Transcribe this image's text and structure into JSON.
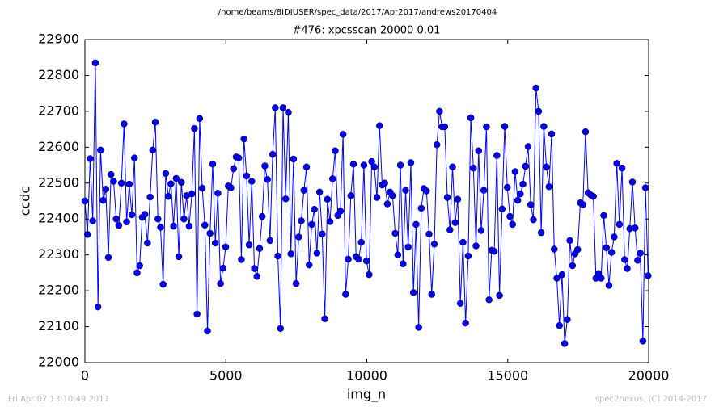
{
  "chart_data": {
    "type": "line",
    "suptitle": "/home/beams/8IDIUSER/spec_data/2017/Apr2017/andrews20170404",
    "title": "#476: xpcsscan 20000 0.01",
    "xlabel": "img_n",
    "ylabel": "ccdc",
    "xlim": [
      0,
      20000
    ],
    "ylim": [
      22000,
      22900
    ],
    "xticks": [
      0,
      5000,
      10000,
      15000,
      20000
    ],
    "yticks": [
      22000,
      22100,
      22200,
      22300,
      22400,
      22500,
      22600,
      22700,
      22800,
      22900
    ],
    "x": [
      0,
      92.5,
      185,
      277.5,
      370,
      462.5,
      555,
      647.5,
      740,
      832.5,
      925,
      1017.5,
      1110,
      1202.5,
      1295,
      1387.5,
      1480,
      1572.5,
      1665,
      1757.5,
      1850,
      1942.5,
      2035,
      2127.5,
      2220,
      2312.5,
      2405,
      2497.5,
      2590,
      2682.5,
      2775,
      2867.5,
      2960,
      3052.5,
      3145,
      3237.5,
      3330,
      3422.5,
      3515,
      3607.5,
      3700,
      3792.5,
      3885,
      3977.5,
      4070,
      4162.5,
      4255,
      4347.5,
      4440,
      4532.5,
      4625,
      4717.5,
      4810,
      4902.5,
      4995,
      5087.5,
      5180,
      5272.5,
      5365,
      5457.5,
      5550,
      5642.5,
      5735,
      5827.5,
      5920,
      6012.5,
      6105,
      6197.5,
      6290,
      6382.5,
      6475,
      6567.5,
      6660,
      6752.5,
      6845,
      6937.5,
      7030,
      7122.5,
      7215,
      7307.5,
      7400,
      7492.5,
      7585,
      7677.5,
      7770,
      7862.5,
      7955,
      8047.5,
      8140,
      8232.5,
      8325,
      8417.5,
      8510,
      8602.5,
      8695,
      8787.5,
      8880,
      8972.5,
      9065,
      9157.5,
      9250,
      9342.5,
      9435,
      9527.5,
      9620,
      9712.5,
      9805,
      9897.5,
      9990,
      10082.5,
      10175,
      10267.5,
      10360,
      10452.5,
      10545,
      10637.5,
      10730,
      10822.5,
      10915,
      11007.5,
      11100,
      11192.5,
      11285,
      11377.5,
      11470,
      11562.5,
      11655,
      11747.5,
      11840,
      11932.5,
      12025,
      12117.5,
      12210,
      12302.5,
      12395,
      12487.5,
      12580,
      12672.5,
      12765,
      12857.5,
      12950,
      13042.5,
      13135,
      13227.5,
      13320,
      13412.5,
      13505,
      13597.5,
      13690,
      13782.5,
      13875,
      13967.5,
      14060,
      14152.5,
      14245,
      14337.5,
      14430,
      14522.5,
      14615,
      14707.5,
      14800,
      14892.5,
      14985,
      15077.5,
      15170,
      15262.5,
      15355,
      15447.5,
      15540,
      15632.5,
      15725,
      15817.5,
      15910,
      16002.5,
      16095,
      16187.5,
      16280,
      16372.5,
      16465,
      16557.5,
      16650,
      16742.5,
      16835,
      16927.5,
      17020,
      17112.5,
      17205,
      17297.5,
      17390,
      17482.5,
      17575,
      17667.5,
      17760,
      17852.5,
      17945,
      18037.5,
      18130,
      18222.5,
      18315,
      18407.5,
      18500,
      18592.5,
      18685,
      18777.5,
      18870,
      18962.5,
      19055,
      19147.5,
      19240,
      19332.5,
      19425,
      19517.5,
      19610,
      19702.5,
      19795,
      19887.5,
      19980
    ],
    "series": [
      {
        "color": "#0000ff",
        "values": [
          22450,
          22357,
          22568,
          22395,
          22835,
          22155,
          22592,
          22452,
          22483,
          22293,
          22524,
          22505,
          22400,
          22382,
          22500,
          22665,
          22392,
          22497,
          22412,
          22570,
          22250,
          22270,
          22405,
          22413,
          22333,
          22461,
          22592,
          22670,
          22400,
          22377,
          22218,
          22527,
          22463,
          22498,
          22380,
          22513,
          22295,
          22502,
          22400,
          22465,
          22380,
          22470,
          22652,
          22135,
          22680,
          22486,
          22383,
          22088,
          22360,
          22553,
          22333,
          22472,
          22220,
          22263,
          22322,
          22492,
          22487,
          22540,
          22573,
          22570,
          22287,
          22623,
          22520,
          22328,
          22505,
          22262,
          22240,
          22318,
          22407,
          22548,
          22510,
          22340,
          22580,
          22710,
          22297,
          22095,
          22710,
          22456,
          22697,
          22303,
          22567,
          22220,
          22350,
          22395,
          22480,
          22545,
          22272,
          22385,
          22427,
          22305,
          22475,
          22358,
          22122,
          22455,
          22393,
          22512,
          22590,
          22410,
          22422,
          22636,
          22190,
          22288,
          22465,
          22553,
          22295,
          22288,
          22335,
          22550,
          22283,
          22245,
          22560,
          22545,
          22460,
          22660,
          22495,
          22500,
          22442,
          22475,
          22465,
          22360,
          22300,
          22550,
          22275,
          22480,
          22322,
          22557,
          22195,
          22385,
          22098,
          22430,
          22485,
          22478,
          22358,
          22190,
          22330,
          22607,
          22700,
          22657,
          22657,
          22460,
          22370,
          22545,
          22390,
          22455,
          22165,
          22335,
          22110,
          22297,
          22682,
          22542,
          22325,
          22590,
          22368,
          22480,
          22657,
          22175,
          22313,
          22310,
          22577,
          22187,
          22428,
          22658,
          22488,
          22407,
          22385,
          22532,
          22452,
          22470,
          22497,
          22547,
          22602,
          22440,
          22398,
          22765,
          22700,
          22362,
          22658,
          22545,
          22490,
          22637,
          22316,
          22235,
          22103,
          22245,
          22053,
          22120,
          22340,
          22270,
          22303,
          22315,
          22445,
          22440,
          22643,
          22473,
          22467,
          22463,
          22235,
          22248,
          22235,
          22410,
          22320,
          22215,
          22307,
          22350,
          22555,
          22385,
          22542,
          22287,
          22262,
          22373,
          22503,
          22375,
          22285,
          22305,
          22060,
          22487,
          22242
        ]
      }
    ]
  },
  "footer": {
    "left": "Fri Apr 07 13:10:49 2017",
    "right": "spec2nexus, (C) 2014-2017"
  }
}
